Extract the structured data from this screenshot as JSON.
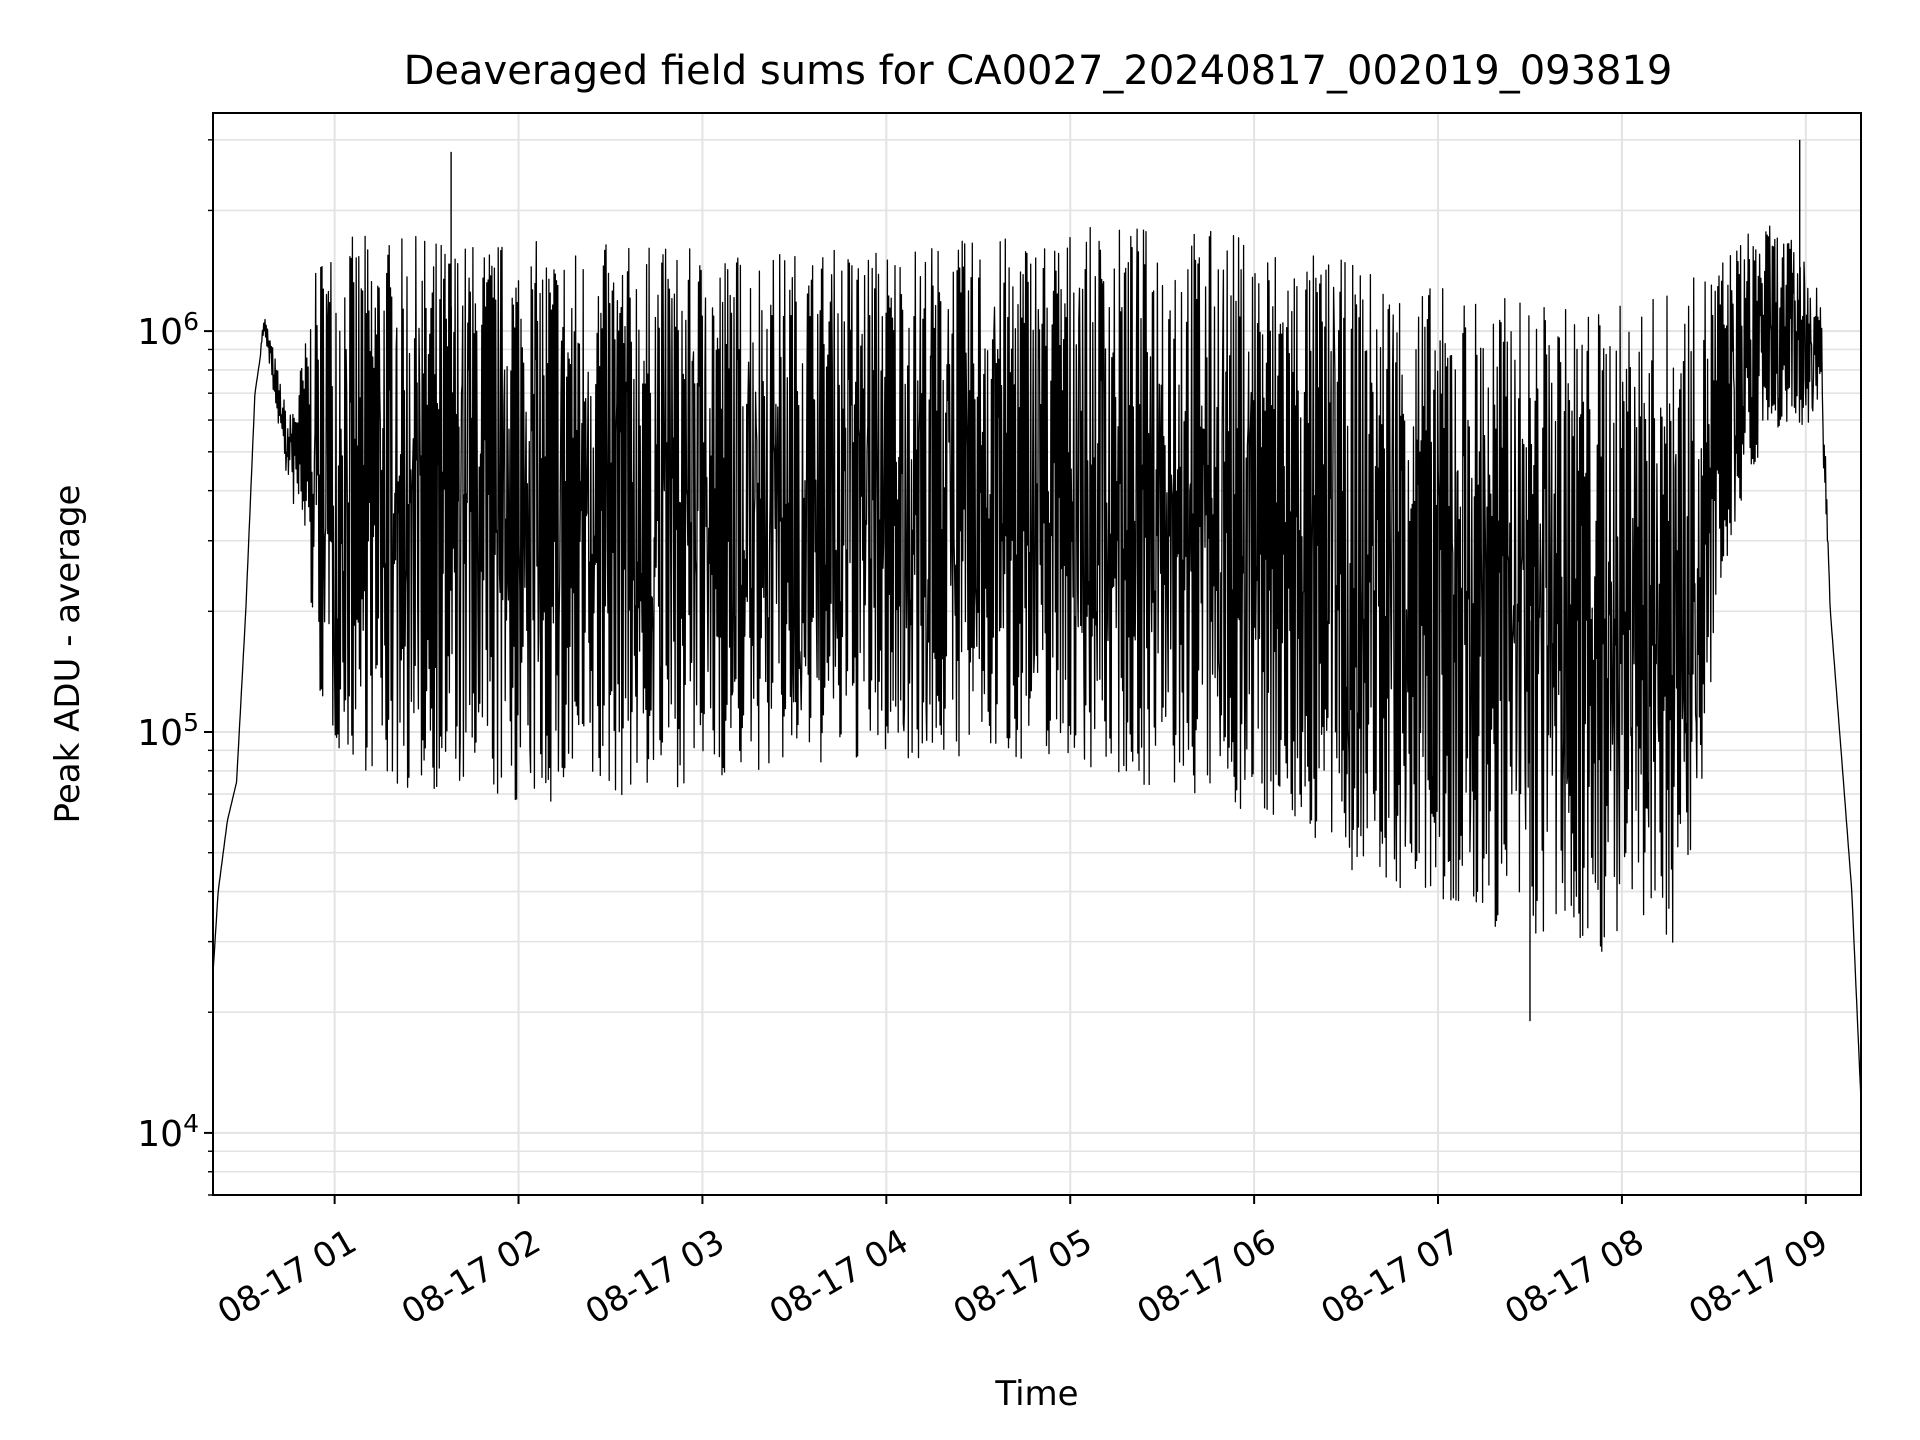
{
  "chart_data": {
    "type": "line",
    "title": "Deaveraged field sums for CA0027_20240817_002019_093819",
    "xlabel": "Time",
    "ylabel": "Peak ADU - average",
    "y_scale": "log",
    "ylim": [
      7000,
      3500000
    ],
    "xlim": [
      "2024-08-17 00:20:19",
      "2024-08-17 09:18:00"
    ],
    "x_ticks": [
      {
        "t": "2024-08-17 01:00",
        "label": "08-17 01"
      },
      {
        "t": "2024-08-17 02:00",
        "label": "08-17 02"
      },
      {
        "t": "2024-08-17 03:00",
        "label": "08-17 03"
      },
      {
        "t": "2024-08-17 04:00",
        "label": "08-17 04"
      },
      {
        "t": "2024-08-17 05:00",
        "label": "08-17 05"
      },
      {
        "t": "2024-08-17 06:00",
        "label": "08-17 06"
      },
      {
        "t": "2024-08-17 07:00",
        "label": "08-17 07"
      },
      {
        "t": "2024-08-17 08:00",
        "label": "08-17 08"
      },
      {
        "t": "2024-08-17 09:00",
        "label": "08-17 09"
      }
    ],
    "y_ticks": [
      {
        "value": 10000,
        "base": "10",
        "exp": "4"
      },
      {
        "value": 100000,
        "base": "10",
        "exp": "5"
      },
      {
        "value": 1000000,
        "base": "10",
        "exp": "6"
      }
    ],
    "grid": true,
    "line_color": "#000000",
    "series": [
      {
        "x": [
          "2024-08-17 00:20:19",
          "2024-08-17 00:22",
          "2024-08-17 00:25",
          "2024-08-17 00:28",
          "2024-08-17 00:31",
          "2024-08-17 00:34",
          "2024-08-17 00:37",
          "2024-08-17 00:40",
          "2024-08-17 00:45",
          "2024-08-17 00:50",
          "2024-08-17 00:55",
          "2024-08-17 01:00",
          "2024-08-17 01:10",
          "2024-08-17 01:20",
          "2024-08-17 01:30",
          "2024-08-17 01:38",
          "2024-08-17 01:45",
          "2024-08-17 02:00",
          "2024-08-17 02:20",
          "2024-08-17 02:40",
          "2024-08-17 03:00",
          "2024-08-17 03:30",
          "2024-08-17 04:00",
          "2024-08-17 04:30",
          "2024-08-17 05:00",
          "2024-08-17 05:30",
          "2024-08-17 05:50",
          "2024-08-17 06:10",
          "2024-08-17 06:30",
          "2024-08-17 07:00",
          "2024-08-17 07:30",
          "2024-08-17 07:55",
          "2024-08-17 08:20",
          "2024-08-17 08:35",
          "2024-08-17 08:45",
          "2024-08-17 08:55",
          "2024-08-17 09:00",
          "2024-08-17 09:05",
          "2024-08-17 09:08",
          "2024-08-17 09:12",
          "2024-08-17 09:15",
          "2024-08-17 09:18"
        ],
        "low": [
          25000,
          40000,
          60000,
          75000,
          200000,
          700000,
          1000000,
          700000,
          400000,
          300000,
          120000,
          90000,
          80000,
          70000,
          72000,
          70000,
          68000,
          65000,
          65000,
          70000,
          75000,
          80000,
          85000,
          85000,
          85000,
          70000,
          65000,
          60000,
          45000,
          35000,
          30000,
          28000,
          30000,
          300000,
          500000,
          600000,
          550000,
          600000,
          200000,
          80000,
          40000,
          12000
        ],
        "high": [
          25000,
          40000,
          60000,
          75000,
          200000,
          700000,
          1100000,
          900000,
          600000,
          900000,
          1600000,
          1700000,
          1750000,
          1700000,
          1750000,
          1700000,
          1700000,
          1700000,
          1650000,
          1650000,
          1600000,
          1600000,
          1650000,
          1700000,
          1800000,
          1850000,
          1800000,
          1650000,
          1500000,
          1300000,
          1200000,
          1150000,
          1300000,
          1600000,
          1900000,
          1700000,
          1500000,
          1200000,
          200000,
          80000,
          40000,
          12000
        ]
      }
    ],
    "spikes": [
      {
        "x": "2024-08-17 01:38",
        "value": 2800000
      },
      {
        "x": "2024-08-17 08:58",
        "value": 3000000
      },
      {
        "x": "2024-08-17 07:30",
        "value": 19000
      }
    ]
  }
}
